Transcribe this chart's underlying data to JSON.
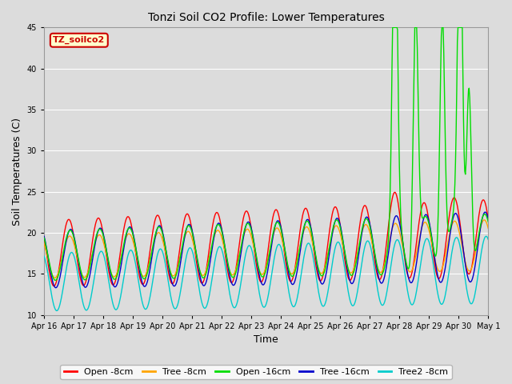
{
  "title": "Tonzi Soil CO2 Profile: Lower Temperatures",
  "xlabel": "Time",
  "ylabel": "Soil Temperatures (C)",
  "ylim": [
    10,
    45
  ],
  "background_color": "#dcdcdc",
  "plot_bg_color": "#dcdcdc",
  "xtick_labels": [
    "Apr 16",
    "Apr 17",
    "Apr 18",
    "Apr 19",
    "Apr 20",
    "Apr 21",
    "Apr 22",
    "Apr 23",
    "Apr 24",
    "Apr 25",
    "Apr 26",
    "Apr 27",
    "Apr 28",
    "Apr 29",
    "Apr 30",
    "May 1"
  ],
  "legend_title": "TZ_soilco2",
  "legend_entries": [
    "Open -8cm",
    "Tree -8cm",
    "Open -16cm",
    "Tree -16cm",
    "Tree2 -8cm"
  ],
  "line_colors": [
    "#ff0000",
    "#ffa500",
    "#00dd00",
    "#0000cc",
    "#00cccc"
  ],
  "subtitle_box_color": "#ffffcc",
  "subtitle_box_edge": "#cc0000"
}
